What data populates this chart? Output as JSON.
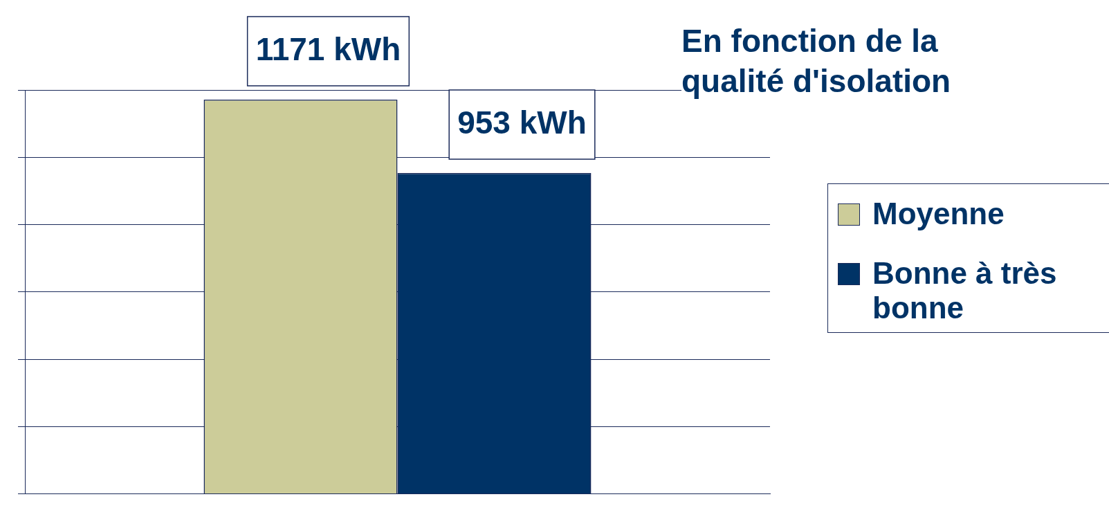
{
  "chart_data": {
    "type": "bar",
    "title": "En fonction de la qualité d'isolation",
    "categories": [
      null
    ],
    "series": [
      {
        "name": "Moyenne",
        "color": "#cccc99",
        "values": [
          1171
        ],
        "value_labels": [
          "1171 kWh"
        ]
      },
      {
        "name": "Bonne à très bonne",
        "color": "#003366",
        "values": [
          953
        ],
        "value_labels": [
          "953 kWh"
        ]
      }
    ],
    "ylim": [
      0,
      1200
    ],
    "yticks": [
      {
        "value": 0,
        "label": null
      },
      {
        "value": 200,
        "label": null
      },
      {
        "value": 400,
        "label": null
      },
      {
        "value": 600,
        "label": null
      },
      {
        "value": 800,
        "label": null
      },
      {
        "value": 1000,
        "label": null
      },
      {
        "value": 1200,
        "label": null
      }
    ],
    "grid": "y",
    "legend": "right"
  }
}
